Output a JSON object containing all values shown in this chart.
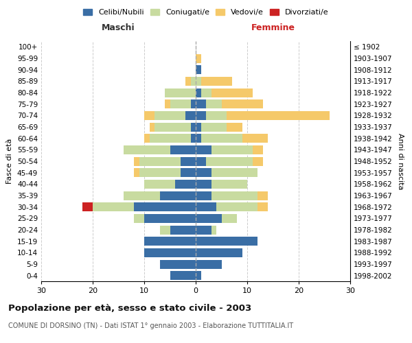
{
  "age_groups": [
    "0-4",
    "5-9",
    "10-14",
    "15-19",
    "20-24",
    "25-29",
    "30-34",
    "35-39",
    "40-44",
    "45-49",
    "50-54",
    "55-59",
    "60-64",
    "65-69",
    "70-74",
    "75-79",
    "80-84",
    "85-89",
    "90-94",
    "95-99",
    "100+"
  ],
  "birth_years": [
    "1998-2002",
    "1993-1997",
    "1988-1992",
    "1983-1987",
    "1978-1982",
    "1973-1977",
    "1968-1972",
    "1963-1967",
    "1958-1962",
    "1953-1957",
    "1948-1952",
    "1943-1947",
    "1938-1942",
    "1933-1937",
    "1928-1932",
    "1923-1927",
    "1918-1922",
    "1913-1917",
    "1908-1912",
    "1903-1907",
    "≤ 1902"
  ],
  "male": {
    "celibi": [
      5,
      7,
      10,
      10,
      5,
      10,
      12,
      7,
      4,
      3,
      3,
      5,
      1,
      1,
      2,
      1,
      0,
      0,
      0,
      0,
      0
    ],
    "coniugati": [
      0,
      0,
      0,
      0,
      2,
      2,
      8,
      7,
      6,
      8,
      8,
      9,
      8,
      7,
      6,
      4,
      6,
      1,
      0,
      0,
      0
    ],
    "vedovi": [
      0,
      0,
      0,
      0,
      0,
      0,
      0,
      0,
      0,
      1,
      1,
      0,
      1,
      1,
      2,
      1,
      0,
      1,
      0,
      0,
      0
    ],
    "divorziati": [
      0,
      0,
      0,
      0,
      0,
      0,
      2,
      0,
      0,
      0,
      0,
      0,
      0,
      0,
      0,
      0,
      0,
      0,
      0,
      0,
      0
    ]
  },
  "female": {
    "nubili": [
      1,
      5,
      9,
      12,
      3,
      5,
      4,
      3,
      3,
      3,
      2,
      3,
      1,
      1,
      2,
      2,
      1,
      0,
      1,
      0,
      0
    ],
    "coniugate": [
      0,
      0,
      0,
      0,
      1,
      3,
      8,
      9,
      7,
      9,
      9,
      8,
      8,
      5,
      4,
      3,
      2,
      1,
      0,
      0,
      0
    ],
    "vedove": [
      0,
      0,
      0,
      0,
      0,
      0,
      2,
      2,
      0,
      0,
      2,
      2,
      5,
      3,
      20,
      8,
      8,
      6,
      0,
      1,
      0
    ],
    "divorziate": [
      0,
      0,
      0,
      0,
      0,
      0,
      0,
      0,
      0,
      0,
      0,
      0,
      0,
      0,
      0,
      0,
      0,
      0,
      0,
      0,
      0
    ]
  },
  "colors": {
    "celibi_nubili": "#3a6ea5",
    "coniugati": "#c8dba0",
    "vedovi": "#f5c96a",
    "divorziati": "#cc2222"
  },
  "title": "Popolazione per età, sesso e stato civile - 2003",
  "subtitle": "COMUNE DI DORSINO (TN) - Dati ISTAT 1° gennaio 2003 - Elaborazione TUTTITALIA.IT",
  "xlabel_left": "Maschi",
  "xlabel_right": "Femmine",
  "ylabel_left": "Fasce di età",
  "ylabel_right": "Anni di nascita",
  "xlim": 30,
  "legend_labels": [
    "Celibi/Nubili",
    "Coniugati/e",
    "Vedovi/e",
    "Divorziati/e"
  ]
}
